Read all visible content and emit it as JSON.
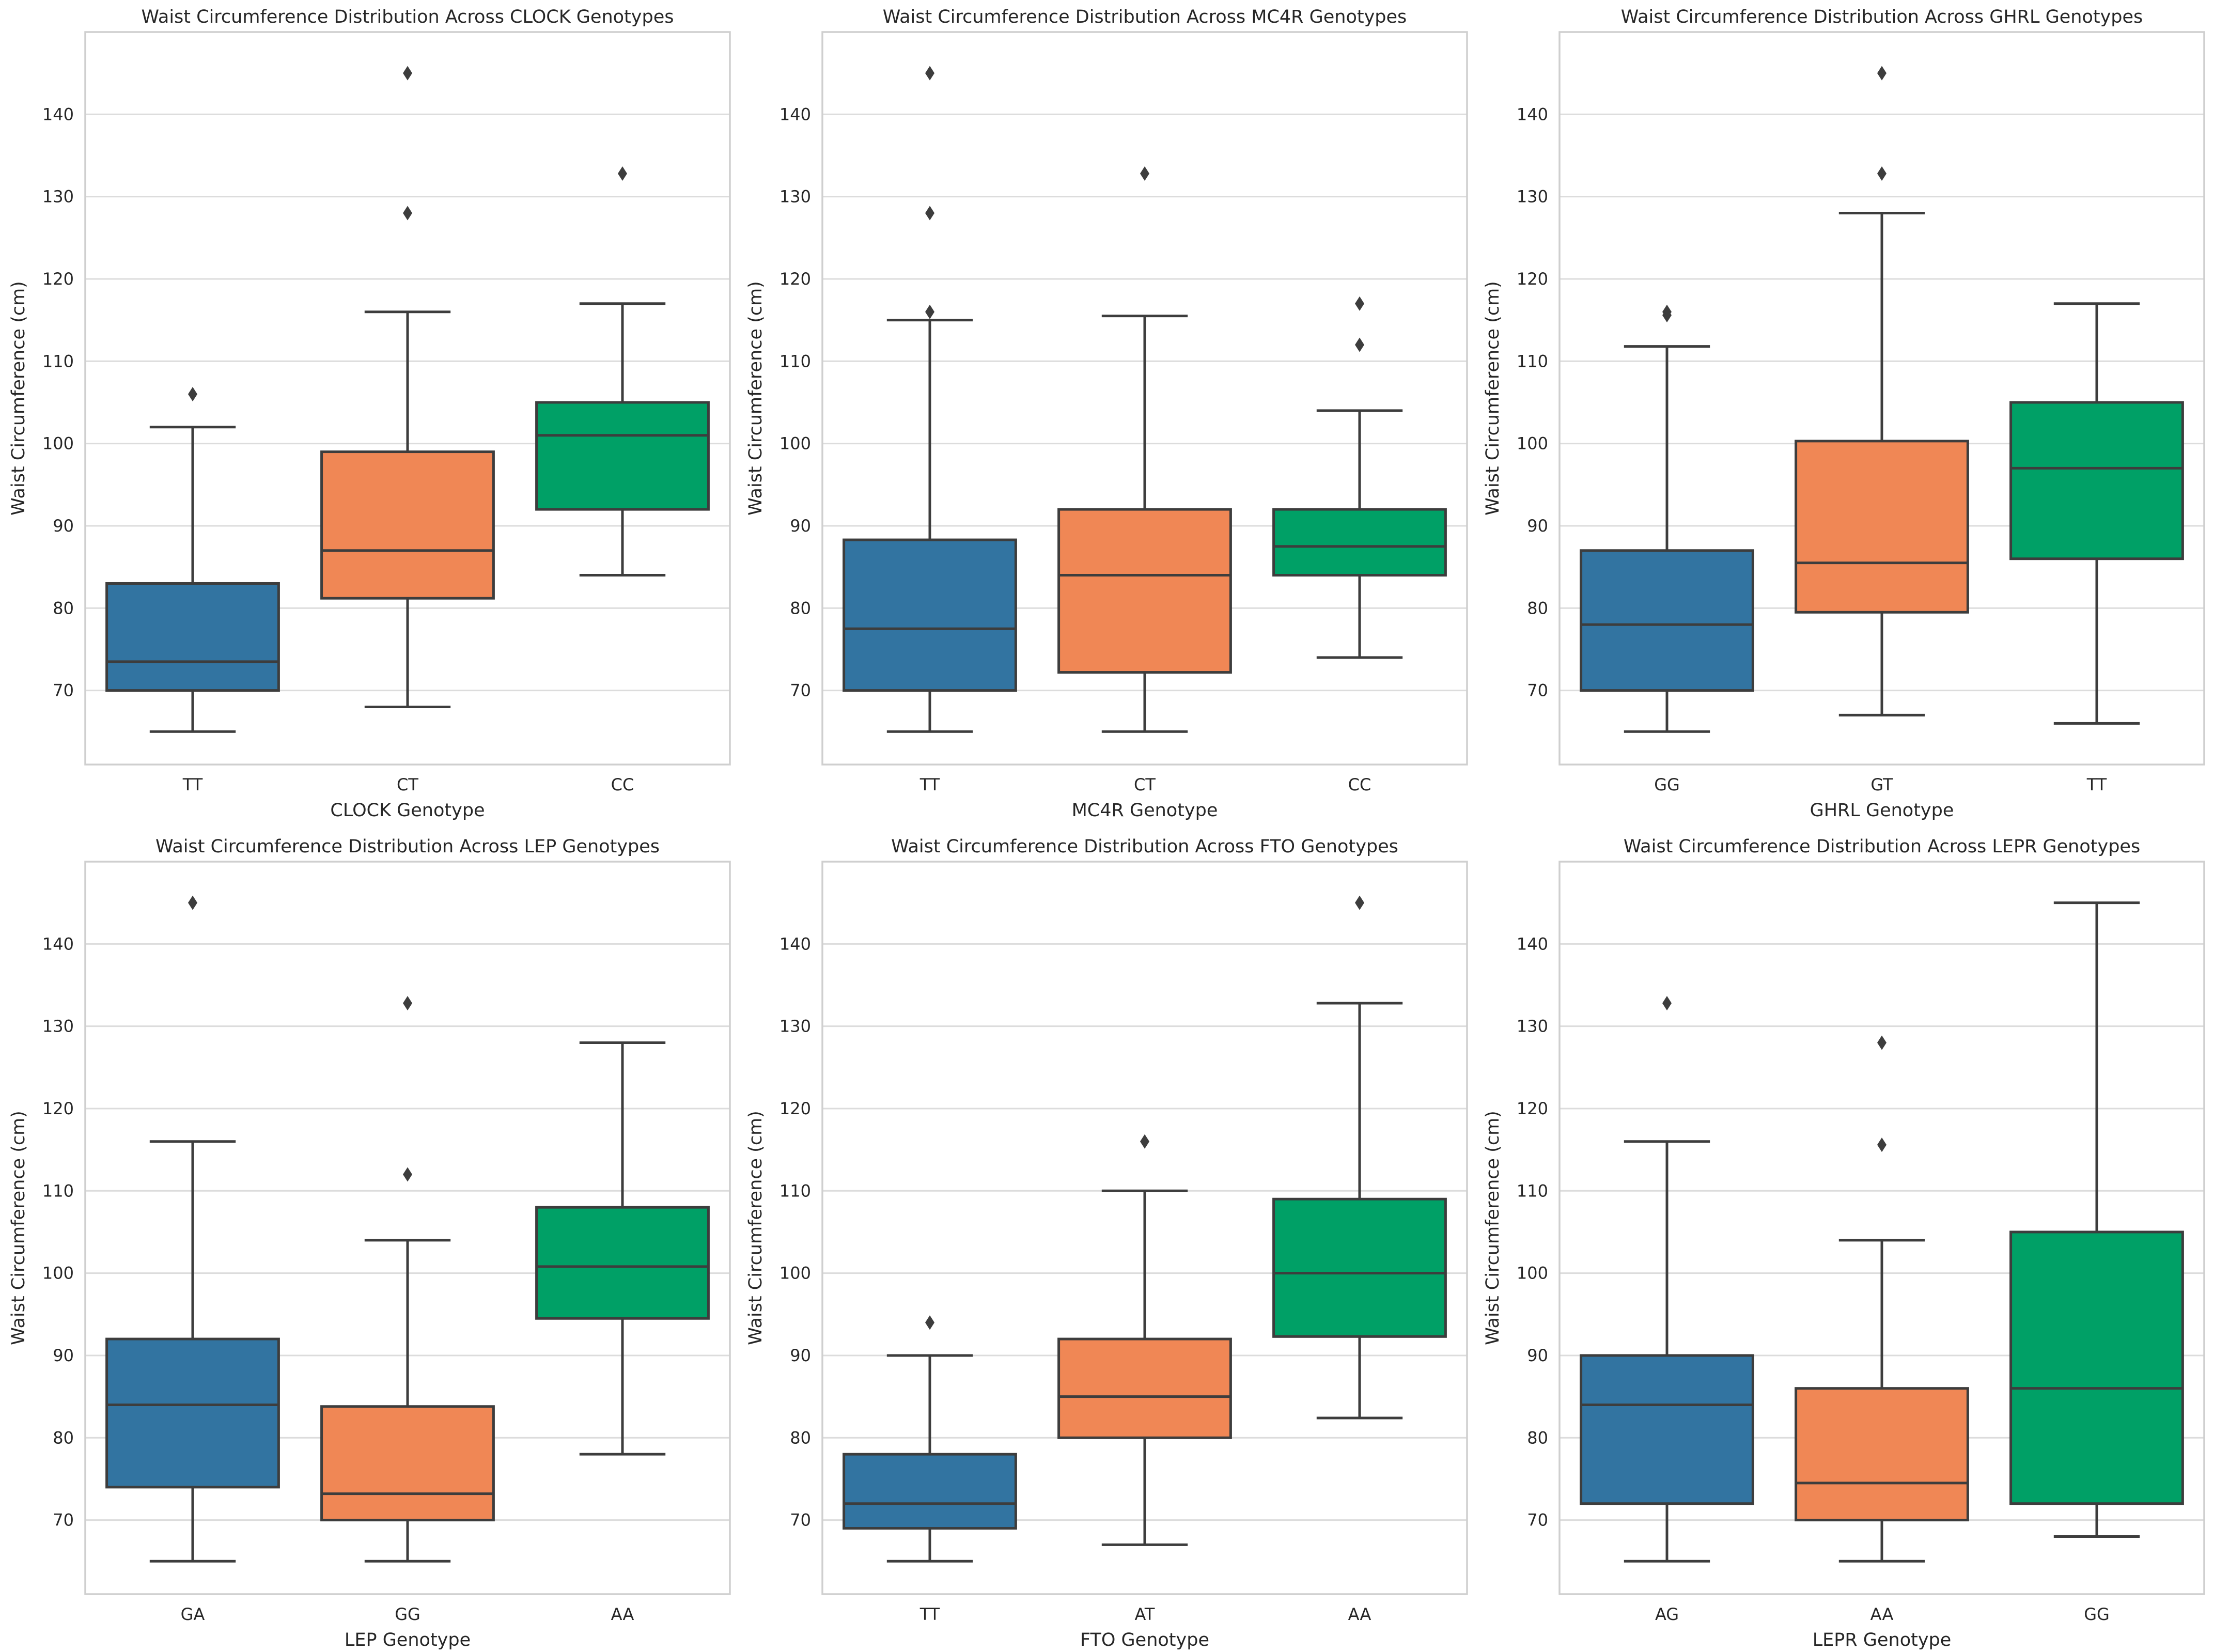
{
  "colors": {
    "blue": "#3274a1",
    "orange": "#f08755",
    "green": "#00a066",
    "line": "#3d3d3d",
    "grid": "#dcdcdc"
  },
  "chart_data": [
    {
      "type": "box",
      "title": "Waist Circumference Distribution Across CLOCK Genotypes",
      "xlabel": "CLOCK Genotype",
      "ylabel": "Waist Circumference (cm)",
      "ylim": [
        61,
        150
      ],
      "yticks": [
        70,
        80,
        90,
        100,
        110,
        120,
        130,
        140
      ],
      "categories": [
        "TT",
        "CT",
        "CC"
      ],
      "colors": [
        "#3274a1",
        "#f08755",
        "#00a066"
      ],
      "boxes": [
        {
          "whislo": 65,
          "q1": 70,
          "med": 73.5,
          "q3": 83,
          "whishi": 102,
          "fliers": [
            106
          ]
        },
        {
          "whislo": 68,
          "q1": 81.2,
          "med": 87,
          "q3": 99,
          "whishi": 116,
          "fliers": [
            128,
            145
          ]
        },
        {
          "whislo": 84,
          "q1": 92,
          "med": 101,
          "q3": 105,
          "whishi": 117,
          "fliers": [
            132.8
          ]
        }
      ]
    },
    {
      "type": "box",
      "title": "Waist Circumference Distribution Across MC4R Genotypes",
      "xlabel": "MC4R Genotype",
      "ylabel": "Waist Circumference (cm)",
      "ylim": [
        61,
        150
      ],
      "yticks": [
        70,
        80,
        90,
        100,
        110,
        120,
        130,
        140
      ],
      "categories": [
        "TT",
        "CT",
        "CC"
      ],
      "colors": [
        "#3274a1",
        "#f08755",
        "#00a066"
      ],
      "boxes": [
        {
          "whislo": 65,
          "q1": 70,
          "med": 77.5,
          "q3": 88.3,
          "whishi": 115,
          "fliers": [
            116,
            128,
            145
          ]
        },
        {
          "whislo": 65,
          "q1": 72.2,
          "med": 84,
          "q3": 92,
          "whishi": 115.5,
          "fliers": [
            132.8
          ]
        },
        {
          "whislo": 74,
          "q1": 84,
          "med": 87.5,
          "q3": 92,
          "whishi": 104,
          "fliers": [
            112,
            117
          ]
        }
      ]
    },
    {
      "type": "box",
      "title": "Waist Circumference Distribution Across GHRL Genotypes",
      "xlabel": "GHRL Genotype",
      "ylabel": "Waist Circumference (cm)",
      "ylim": [
        61,
        150
      ],
      "yticks": [
        70,
        80,
        90,
        100,
        110,
        120,
        130,
        140
      ],
      "categories": [
        "GG",
        "GT",
        "TT"
      ],
      "colors": [
        "#3274a1",
        "#f08755",
        "#00a066"
      ],
      "boxes": [
        {
          "whislo": 65,
          "q1": 70,
          "med": 78,
          "q3": 87,
          "whishi": 111.8,
          "fliers": [
            115.6,
            116
          ]
        },
        {
          "whislo": 67,
          "q1": 79.5,
          "med": 85.5,
          "q3": 100.3,
          "whishi": 128,
          "fliers": [
            132.8,
            145
          ]
        },
        {
          "whislo": 66,
          "q1": 86,
          "med": 97,
          "q3": 105,
          "whishi": 117,
          "fliers": []
        }
      ]
    },
    {
      "type": "box",
      "title": "Waist Circumference Distribution Across LEP Genotypes",
      "xlabel": "LEP Genotype",
      "ylabel": "Waist Circumference (cm)",
      "ylim": [
        61,
        150
      ],
      "yticks": [
        70,
        80,
        90,
        100,
        110,
        120,
        130,
        140
      ],
      "categories": [
        "GA",
        "GG",
        "AA"
      ],
      "colors": [
        "#3274a1",
        "#f08755",
        "#00a066"
      ],
      "boxes": [
        {
          "whislo": 65,
          "q1": 74,
          "med": 84,
          "q3": 92,
          "whishi": 116,
          "fliers": [
            145
          ]
        },
        {
          "whislo": 65,
          "q1": 70,
          "med": 73.2,
          "q3": 83.8,
          "whishi": 104,
          "fliers": [
            112,
            132.8
          ]
        },
        {
          "whislo": 78,
          "q1": 94.5,
          "med": 100.8,
          "q3": 108,
          "whishi": 128,
          "fliers": []
        }
      ]
    },
    {
      "type": "box",
      "title": "Waist Circumference Distribution Across FTO Genotypes",
      "xlabel": "FTO Genotype",
      "ylabel": "Waist Circumference (cm)",
      "ylim": [
        61,
        150
      ],
      "yticks": [
        70,
        80,
        90,
        100,
        110,
        120,
        130,
        140
      ],
      "categories": [
        "TT",
        "AT",
        "AA"
      ],
      "colors": [
        "#3274a1",
        "#f08755",
        "#00a066"
      ],
      "boxes": [
        {
          "whislo": 65,
          "q1": 69,
          "med": 72,
          "q3": 78,
          "whishi": 90,
          "fliers": [
            94
          ]
        },
        {
          "whislo": 67,
          "q1": 80,
          "med": 85,
          "q3": 92,
          "whishi": 110,
          "fliers": [
            116
          ]
        },
        {
          "whislo": 82.4,
          "q1": 92.3,
          "med": 100,
          "q3": 109,
          "whishi": 132.8,
          "fliers": [
            145
          ]
        }
      ]
    },
    {
      "type": "box",
      "title": "Waist Circumference Distribution Across LEPR Genotypes",
      "xlabel": "LEPR Genotype",
      "ylabel": "Waist Circumference (cm)",
      "ylim": [
        61,
        150
      ],
      "yticks": [
        70,
        80,
        90,
        100,
        110,
        120,
        130,
        140
      ],
      "categories": [
        "AG",
        "AA",
        "GG"
      ],
      "colors": [
        "#3274a1",
        "#f08755",
        "#00a066"
      ],
      "boxes": [
        {
          "whislo": 65,
          "q1": 72,
          "med": 84,
          "q3": 90,
          "whishi": 116,
          "fliers": [
            132.8
          ]
        },
        {
          "whislo": 65,
          "q1": 70,
          "med": 74.5,
          "q3": 86,
          "whishi": 104,
          "fliers": [
            115.6,
            128
          ]
        },
        {
          "whislo": 68,
          "q1": 72,
          "med": 86,
          "q3": 105,
          "whishi": 145,
          "fliers": []
        }
      ]
    }
  ]
}
